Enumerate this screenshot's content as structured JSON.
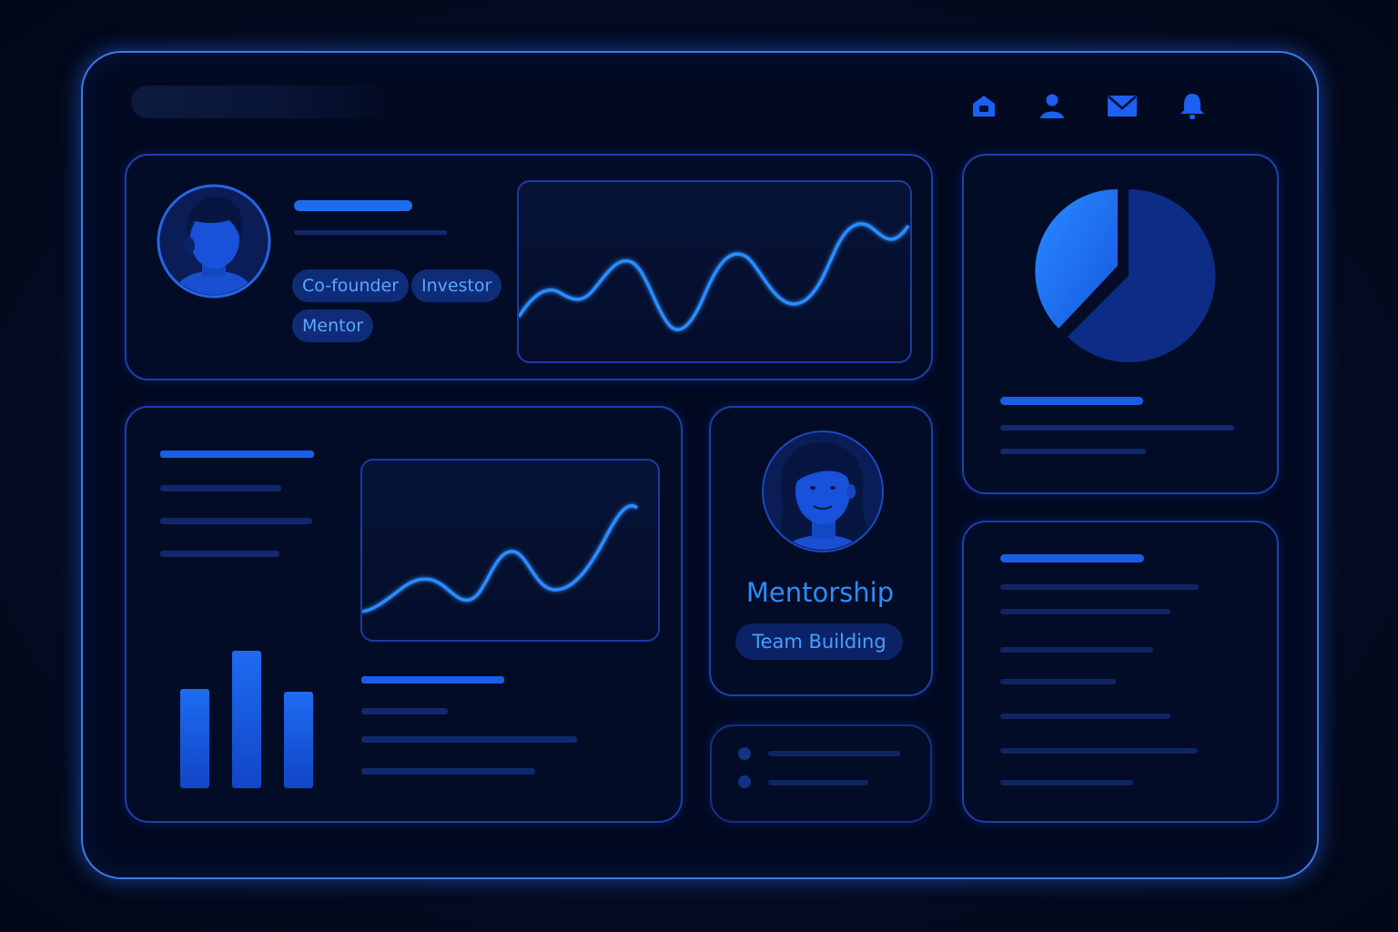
{
  "header": {
    "search_placeholder": "",
    "nav_icons": [
      "home-icon",
      "user-icon",
      "mail-icon",
      "bell-icon"
    ]
  },
  "profile_card": {
    "tags": [
      "Co-founder",
      "Investor",
      "Mentor"
    ]
  },
  "mentor_card": {
    "title": "Mentorship",
    "tag": "Team Building"
  },
  "bar_chart": {
    "values": [
      3.6,
      5.0,
      3.5
    ],
    "max": 5.0
  },
  "theme": {
    "accent": "#1e6df0",
    "text_accent": "#2b8cff",
    "border": "#1d3fb0",
    "background": "#030818"
  }
}
